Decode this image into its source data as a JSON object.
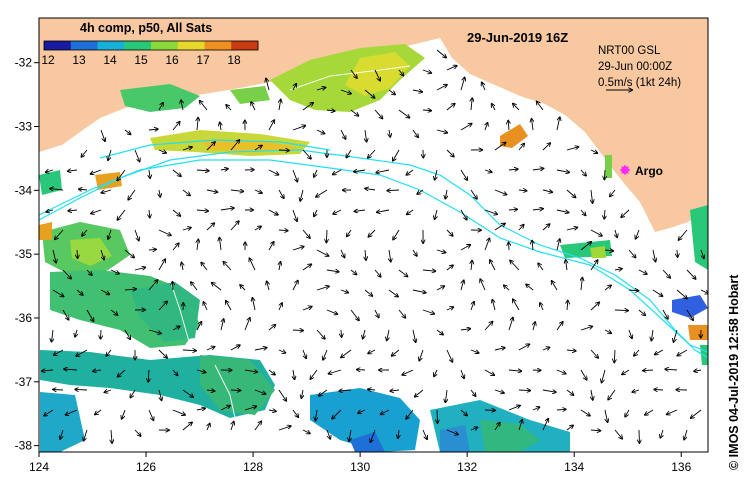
{
  "legend": {
    "title": "4h comp, p50, All Sats",
    "ticks": [
      "12",
      "13",
      "14",
      "15",
      "16",
      "17",
      "18"
    ],
    "colors": [
      "#1a1aa0",
      "#1f6fd8",
      "#18b0d8",
      "#28c878",
      "#8ad83a",
      "#e8d82a",
      "#f09020",
      "#c83a10"
    ]
  },
  "date_label": "29-Jun-2019 16Z",
  "current_info": {
    "model": "NRT00 GSL",
    "time": "29-Jun 00:00Z",
    "scale": "0.5m/s (1kt 24h)"
  },
  "argo_label": "Argo",
  "credit": "© IMOS 04-Jul-2019 12:58 Hobart",
  "axes": {
    "x_ticks": [
      124,
      126,
      128,
      130,
      132,
      134,
      136
    ],
    "y_ticks": [
      -32,
      -33,
      -34,
      -35,
      -36,
      -37,
      -38
    ],
    "x_range": [
      124,
      136.5
    ],
    "y_range": [
      -38.1,
      -31.3
    ]
  },
  "colors": {
    "land": "#f8c8a0",
    "ocean": "#ffffff",
    "contour": "#20e0f0",
    "argo": "#ff20ff"
  }
}
